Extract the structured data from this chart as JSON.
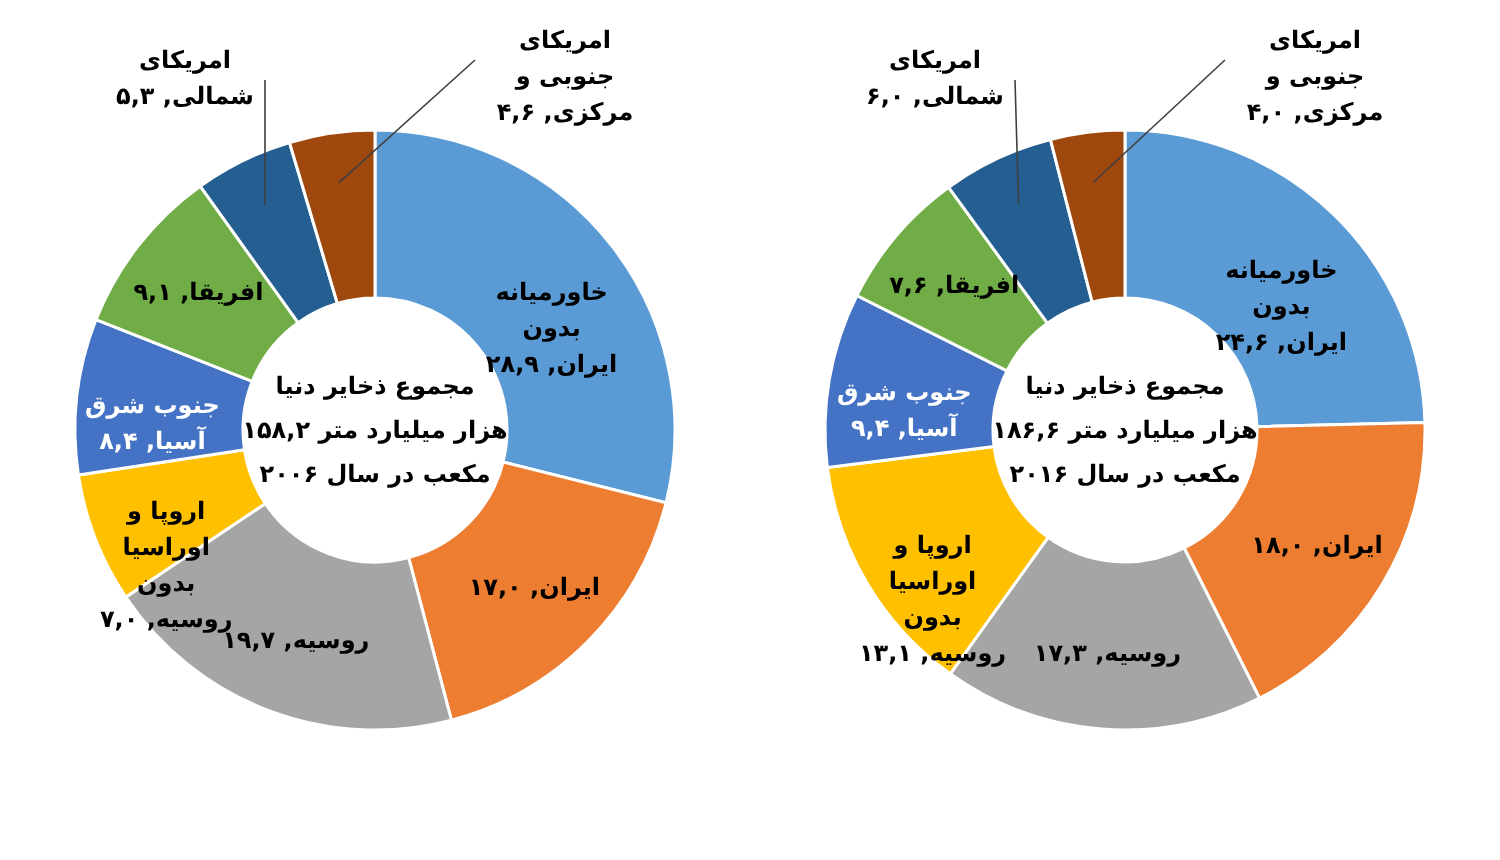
{
  "chart_data": [
    {
      "type": "donut",
      "categories": [
        "خاورمیانه بدون ایران",
        "ایران",
        "روسیه",
        "اروپا و اوراسیا بدون روسیه",
        "جنوب شرق آسیا",
        "افریقا",
        "امریکای شمالی",
        "امریکای جنوبی و مرکزی"
      ],
      "values": [
        28.9,
        17.0,
        19.7,
        7.0,
        8.4,
        9.1,
        5.3,
        4.6
      ],
      "value_labels": [
        "۲۸,۹",
        "۱۷,۰",
        "۱۹,۷",
        "۷,۰",
        "۸,۴",
        "۹,۱",
        "۵,۳",
        "۴,۶"
      ],
      "colors": [
        "#5b9bd5",
        "#ed7d31",
        "#a5a5a5",
        "#ffc000",
        "#4472c4",
        "#70ad47",
        "#255e91",
        "#9e480e"
      ],
      "annotations": [
        "مجموع ذخایر دنیا\n۱۵۸,۲ هزار میلیارد متر\nمکعب در سال ۲۰۰۶"
      ]
    },
    {
      "type": "donut",
      "categories": [
        "خاورمیانه بدون ایران",
        "ایران",
        "روسیه",
        "اروپا و اوراسیا بدون روسیه",
        "جنوب شرق آسیا",
        "افریقا",
        "امریکای شمالی",
        "امریکای جنوبی و مرکزی"
      ],
      "values": [
        24.6,
        18.0,
        17.3,
        13.1,
        9.4,
        7.6,
        6.0,
        4.0
      ],
      "value_labels": [
        "۲۴,۶",
        "۱۸,۰",
        "۱۷,۳",
        "۱۳,۱",
        "۹,۴",
        "۷,۶",
        "۶,۰",
        "۴,۰"
      ],
      "colors": [
        "#5b9bd5",
        "#ed7d31",
        "#a5a5a5",
        "#ffc000",
        "#4472c4",
        "#70ad47",
        "#255e91",
        "#9e480e"
      ],
      "annotations": [
        "مجموع ذخایر دنیا\n۱۸۶,۶ هزار میلیارد متر\nمکعب در سال ۲۰۱۶"
      ]
    }
  ]
}
